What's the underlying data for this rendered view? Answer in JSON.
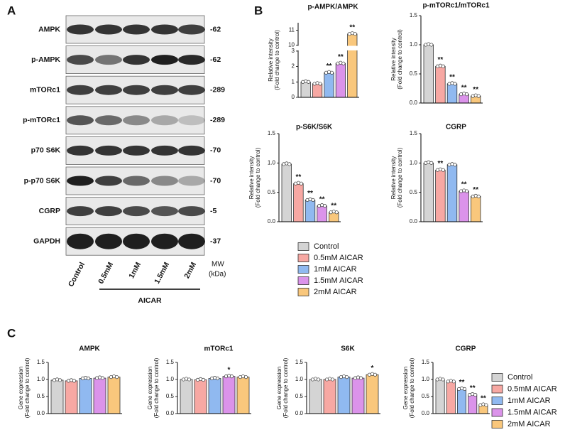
{
  "panel_labels": [
    "A",
    "B",
    "C"
  ],
  "blot": {
    "rows": [
      {
        "name": "AMPK",
        "mw": "-62"
      },
      {
        "name": "p-AMPK",
        "mw": "-62"
      },
      {
        "name": "mTORc1",
        "mw": "-289"
      },
      {
        "name": "p-mTORc1",
        "mw": "-289"
      },
      {
        "name": "p70 S6K",
        "mw": "-70"
      },
      {
        "name": "p-p70 S6K",
        "mw": "-70"
      },
      {
        "name": "CGRP",
        "mw": "-5"
      },
      {
        "name": "GAPDH",
        "mw": "-37"
      }
    ],
    "lanes": [
      "Control",
      "0.5mM",
      "1mM",
      "1.5mM",
      "2mM"
    ],
    "mw_header": [
      "MW",
      "(kDa)"
    ],
    "treatment": "AICAR"
  },
  "legend": {
    "items": [
      {
        "name": "Control",
        "color": "#d4d4d4"
      },
      {
        "name": "0.5mM AICAR",
        "color": "#f7a8a3"
      },
      {
        "name": "1mM AICAR",
        "color": "#90b9f0"
      },
      {
        "name": "1.5mM AICAR",
        "color": "#db93ea"
      },
      {
        "name": "2mM AICAR",
        "color": "#f9c77c"
      }
    ]
  },
  "chart_data": [
    {
      "type": "bar",
      "title": "p-AMPK/AMPK",
      "ylabel": [
        "Relative intensity",
        "(Fold change to control)"
      ],
      "values": [
        1.0,
        0.88,
        1.6,
        2.2,
        10.75
      ],
      "annotations": [
        null,
        null,
        "**",
        "**",
        "**"
      ],
      "ylim_segments": [
        [
          0,
          3
        ],
        [
          10,
          11.5
        ]
      ],
      "yticks": [
        0,
        1,
        2,
        3,
        10,
        11
      ]
    },
    {
      "type": "bar",
      "title": "p-mTORc1/mTORc1",
      "ylabel": [
        "Relative intensity",
        "(Fold change to control)"
      ],
      "values": [
        1.0,
        0.63,
        0.33,
        0.15,
        0.12
      ],
      "annotations": [
        null,
        "**",
        "**",
        "**",
        "**"
      ],
      "ylim": [
        0,
        1.5
      ],
      "yticks": [
        {
          "value": 0,
          "label": "0.0"
        },
        {
          "value": 0.5,
          "label": "0.5"
        },
        {
          "value": 1,
          "label": "1.0"
        },
        {
          "value": 1.5,
          "label": "1.5"
        }
      ]
    },
    {
      "type": "bar",
      "title": "p-S6K/S6K",
      "ylabel": [
        "Relative intensity",
        "(Fold change to control)"
      ],
      "values": [
        0.98,
        0.65,
        0.37,
        0.27,
        0.16
      ],
      "annotations": [
        null,
        "**",
        "**",
        "**",
        "**"
      ],
      "ylim": [
        0,
        1.5
      ],
      "yticks": [
        {
          "value": 0,
          "label": "0.0"
        },
        {
          "value": 0.5,
          "label": "0.5"
        },
        {
          "value": 1,
          "label": "1.0"
        },
        {
          "value": 1.5,
          "label": "1.5"
        }
      ]
    },
    {
      "type": "bar",
      "title": "CGRP",
      "ylabel": [
        "Relative intensity",
        "(Fold change to control)"
      ],
      "values": [
        1.0,
        0.88,
        0.97,
        0.52,
        0.43
      ],
      "annotations": [
        null,
        "**",
        null,
        "**",
        "**"
      ],
      "ylim": [
        0,
        1.5
      ],
      "yticks": [
        {
          "value": 0,
          "label": "0.0"
        },
        {
          "value": 0.5,
          "label": "0.5"
        },
        {
          "value": 1,
          "label": "1.0"
        },
        {
          "value": 1.5,
          "label": "1.5"
        }
      ]
    },
    {
      "type": "bar",
      "title": "AMPK",
      "ylabel": [
        "Gene expression",
        "(Fold change to control)"
      ],
      "values": [
        0.98,
        0.96,
        1.03,
        1.04,
        1.07
      ],
      "annotations": [
        null,
        null,
        null,
        null,
        null
      ],
      "ylim": [
        0,
        1.5
      ],
      "yticks": [
        {
          "value": 0,
          "label": "0.0"
        },
        {
          "value": 0.5,
          "label": "0.5"
        },
        {
          "value": 1,
          "label": "1.0"
        },
        {
          "value": 1.5,
          "label": "1.5"
        }
      ]
    },
    {
      "type": "bar",
      "title": "mTORc1",
      "ylabel": [
        "Gene expression",
        "(Fold change to control)"
      ],
      "values": [
        1.0,
        0.99,
        1.03,
        1.09,
        1.07
      ],
      "annotations": [
        null,
        null,
        null,
        "*",
        null
      ],
      "ylim": [
        0,
        1.5
      ],
      "yticks": [
        {
          "value": 0,
          "label": "0.0"
        },
        {
          "value": 0.5,
          "label": "0.5"
        },
        {
          "value": 1,
          "label": "1.0"
        },
        {
          "value": 1.5,
          "label": "1.5"
        }
      ]
    },
    {
      "type": "bar",
      "title": "S6K",
      "ylabel": [
        "Gene expression",
        "(Fold change to control)"
      ],
      "values": [
        1.0,
        1.0,
        1.07,
        1.04,
        1.14
      ],
      "annotations": [
        null,
        null,
        null,
        null,
        "*"
      ],
      "ylim": [
        0,
        1.5
      ],
      "yticks": [
        {
          "value": 0,
          "label": "0.0"
        },
        {
          "value": 0.5,
          "label": "0.5"
        },
        {
          "value": 1,
          "label": "1.0"
        },
        {
          "value": 1.5,
          "label": "1.5"
        }
      ]
    },
    {
      "type": "bar",
      "title": "CGRP",
      "ylabel": [
        "Gene expression",
        "(Fold change to control)"
      ],
      "values": [
        1.0,
        0.94,
        0.72,
        0.55,
        0.25
      ],
      "annotations": [
        null,
        null,
        "**",
        "**",
        "**"
      ],
      "ylim": [
        0,
        1.5
      ],
      "yticks": [
        {
          "value": 0,
          "label": "0.0"
        },
        {
          "value": 0.5,
          "label": "0.5"
        },
        {
          "value": 1,
          "label": "1.0"
        },
        {
          "value": 1.5,
          "label": "1.5"
        }
      ]
    }
  ]
}
